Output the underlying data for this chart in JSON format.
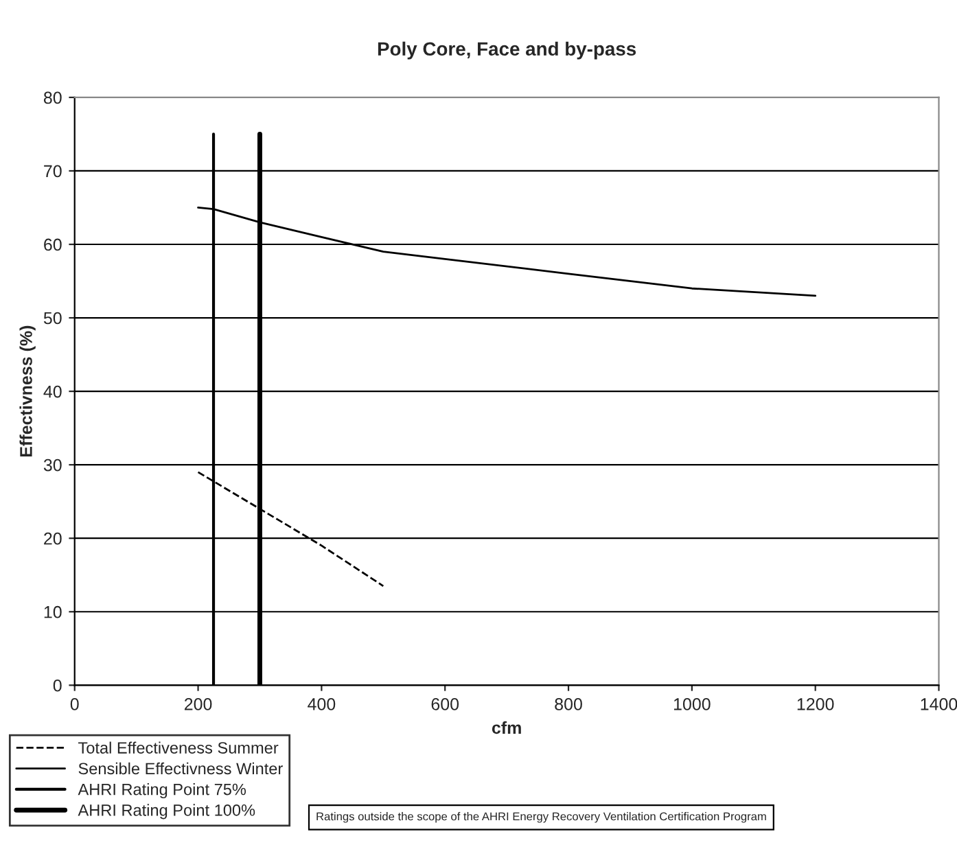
{
  "chart_data": {
    "type": "line",
    "title": "Poly Core, Face and by-pass",
    "xlabel": "cfm",
    "ylabel": "Effectivness (%)",
    "xlim": [
      0,
      1400
    ],
    "xticks": [
      0,
      200,
      400,
      600,
      800,
      1000,
      1200,
      1400
    ],
    "ylim": [
      0,
      80
    ],
    "yticks": [
      0,
      10,
      20,
      30,
      40,
      50,
      60,
      70,
      80
    ],
    "grid": "y",
    "legend": "bottom left",
    "series": [
      {
        "name": "Total Effectiveness Summer",
        "color": "#000000",
        "line_style": "dashed",
        "x": [
          200,
          300,
          400,
          500
        ],
        "values": [
          29,
          24,
          19,
          13.5
        ]
      },
      {
        "name": "Sensible Effectivness Winter",
        "color": "#000000",
        "line_style": "solid",
        "x": [
          200,
          225,
          300,
          400,
          500,
          600,
          800,
          1000,
          1200
        ],
        "values": [
          65,
          64.8,
          63,
          61,
          59,
          58,
          56,
          54,
          53
        ]
      },
      {
        "name": "AHRI Rating Point 75%",
        "color": "#000000",
        "line_style": "solid",
        "x": [
          225,
          225
        ],
        "values": [
          0,
          75
        ]
      },
      {
        "name": "AHRI Rating Point 100%",
        "color": "#000000",
        "line_style": "solid",
        "x": [
          300,
          300
        ],
        "values": [
          0,
          75
        ]
      }
    ],
    "annotations": [
      "Ratings outside the scope of the AHRI Energy Recovery Ventilation Certification Program"
    ]
  }
}
